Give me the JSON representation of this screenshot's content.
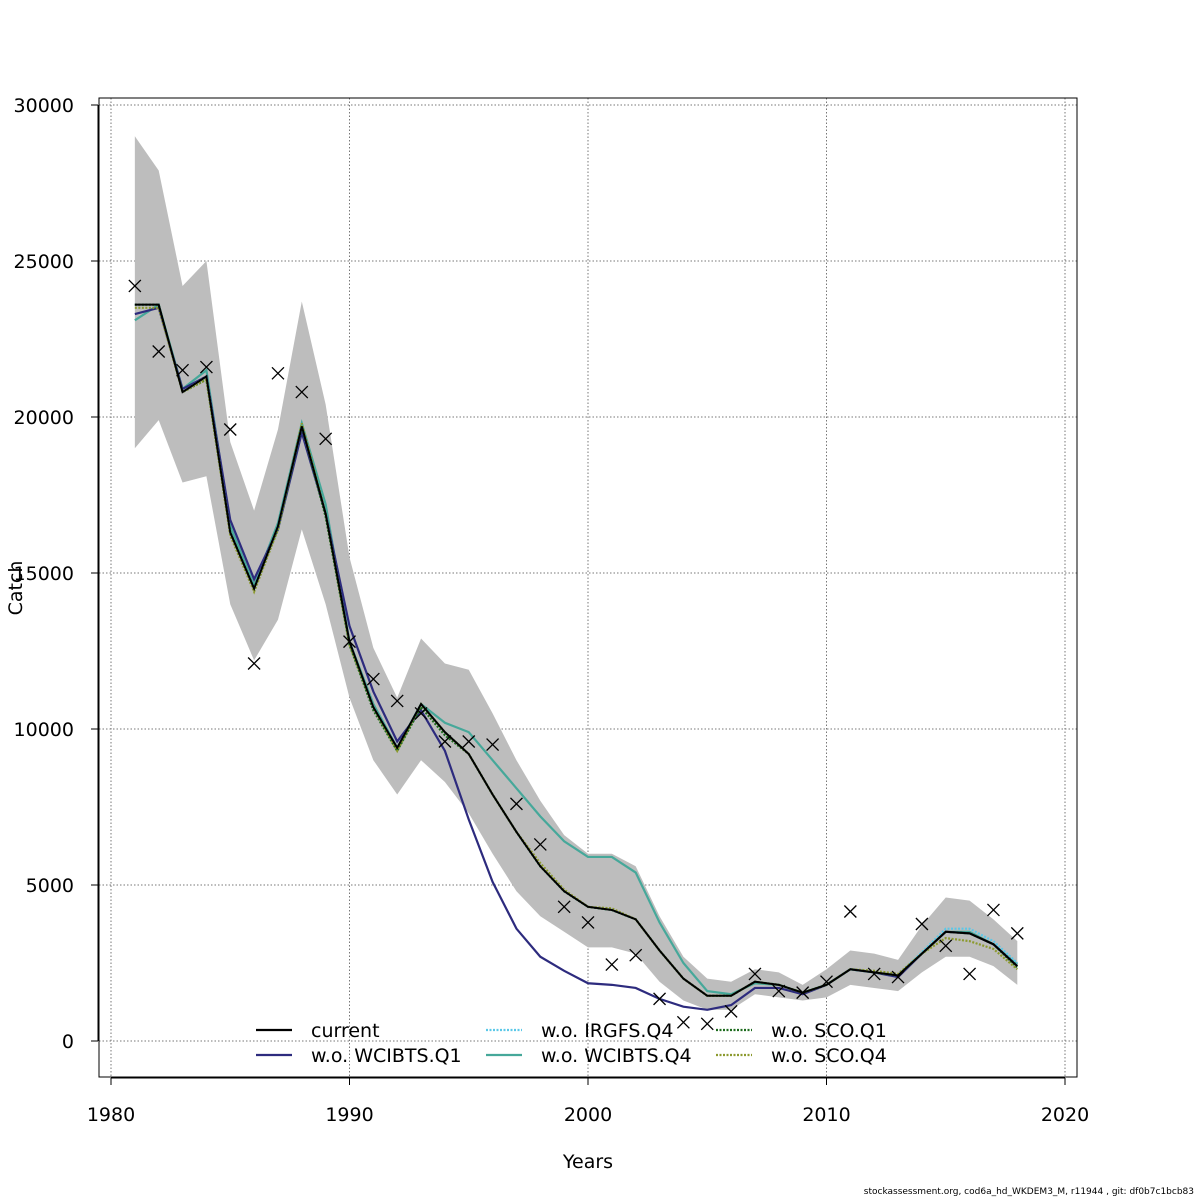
{
  "chart_data": {
    "type": "line",
    "title": "",
    "xlabel": "Years",
    "ylabel": "Catch",
    "xlim": [
      1980,
      2020
    ],
    "ylim": [
      0,
      30000
    ],
    "x_ticks": [
      1980,
      1990,
      2000,
      2010,
      2020
    ],
    "y_ticks": [
      0,
      5000,
      10000,
      15000,
      20000,
      25000,
      30000
    ],
    "grid": true,
    "legend_position": "bottom",
    "years": [
      1981,
      1982,
      1983,
      1984,
      1985,
      1986,
      1987,
      1988,
      1989,
      1990,
      1991,
      1992,
      1993,
      1994,
      1995,
      1996,
      1997,
      1998,
      1999,
      2000,
      2001,
      2002,
      2003,
      2004,
      2005,
      2006,
      2007,
      2008,
      2009,
      2010,
      2011,
      2012,
      2013,
      2014,
      2015,
      2016,
      2017,
      2018
    ],
    "band": {
      "upper": [
        29000,
        27900,
        24200,
        25000,
        19200,
        17000,
        19600,
        23700,
        20400,
        15500,
        12600,
        11000,
        12900,
        12100,
        11900,
        10500,
        9000,
        7700,
        6600,
        6000,
        6000,
        5600,
        4000,
        2700,
        2000,
        1900,
        2300,
        2200,
        1800,
        2300,
        2900,
        2800,
        2600,
        3700,
        4600,
        4500,
        3900,
        3200
      ],
      "lower": [
        19000,
        19900,
        17900,
        18100,
        14000,
        12200,
        13500,
        16400,
        14000,
        11000,
        9000,
        7900,
        9000,
        8300,
        7300,
        6000,
        4800,
        4000,
        3500,
        3000,
        3000,
        2800,
        1900,
        1300,
        1000,
        1000,
        1500,
        1400,
        1300,
        1400,
        1800,
        1700,
        1600,
        2200,
        2700,
        2700,
        2400,
        1800
      ]
    },
    "observed_points": [
      24200,
      22100,
      21500,
      21600,
      19600,
      12100,
      21400,
      20800,
      19300,
      12800,
      11600,
      10900,
      10500,
      9600,
      9600,
      9500,
      7600,
      6300,
      4300,
      3800,
      2450,
      2750,
      1350,
      600,
      550,
      950,
      2150,
      1600,
      1550,
      1900,
      4150,
      2150,
      2050,
      3750,
      3050,
      2150,
      4200,
      3450
    ],
    "series": [
      {
        "name": "current",
        "color": "#000000",
        "dashed": false,
        "values": [
          23600,
          23600,
          20800,
          21300,
          16300,
          14500,
          16500,
          19700,
          16900,
          12800,
          10700,
          9400,
          10800,
          9900,
          9200,
          7900,
          6700,
          5600,
          4800,
          4300,
          4200,
          3900,
          2900,
          2000,
          1450,
          1450,
          1900,
          1800,
          1550,
          1800,
          2300,
          2200,
          2100,
          2800,
          3500,
          3450,
          3100,
          2400
        ]
      },
      {
        "name": "w.o. WCIBTS.Q1",
        "color": "#2d2b7e",
        "dashed": false,
        "values": [
          23300,
          23500,
          20900,
          21300,
          16700,
          14800,
          16400,
          19500,
          16900,
          13300,
          11200,
          9600,
          10600,
          9300,
          7100,
          5100,
          3600,
          2700,
          2250,
          1850,
          1800,
          1700,
          1350,
          1100,
          1000,
          1150,
          1700,
          1700,
          1500,
          1800,
          2300,
          2200,
          2050,
          2800,
          3500,
          3450,
          3100,
          2400
        ]
      },
      {
        "name": "w.o. IRGFS.Q4",
        "color": "#5bc8e8",
        "dashed": true,
        "values": [
          23600,
          23600,
          20800,
          21300,
          16300,
          14500,
          16500,
          19700,
          16900,
          12800,
          10700,
          9400,
          10800,
          9900,
          9200,
          7900,
          6700,
          5600,
          4800,
          4300,
          4200,
          3900,
          2900,
          2000,
          1450,
          1450,
          1900,
          1800,
          1550,
          1800,
          2300,
          2200,
          2100,
          2850,
          3600,
          3600,
          3200,
          2500
        ]
      },
      {
        "name": "w.o. WCIBTS.Q4",
        "color": "#46a89a",
        "dashed": false,
        "values": [
          23100,
          23600,
          20900,
          21500,
          16500,
          14600,
          16600,
          19800,
          17200,
          12800,
          10800,
          9400,
          10800,
          10200,
          9900,
          9000,
          8100,
          7200,
          6400,
          5900,
          5900,
          5400,
          3800,
          2500,
          1600,
          1500,
          1850,
          1800,
          1550,
          1800,
          2300,
          2200,
          2100,
          2800,
          3500,
          3500,
          3100,
          2450
        ]
      },
      {
        "name": "w.o. SCO.Q1",
        "color": "#1e6b1e",
        "dashed": true,
        "values": [
          23600,
          23600,
          20800,
          21200,
          16300,
          14500,
          16400,
          19700,
          16800,
          12700,
          10600,
          9300,
          10700,
          9800,
          9200,
          7900,
          6700,
          5600,
          4800,
          4300,
          4200,
          3900,
          2900,
          2000,
          1450,
          1450,
          1900,
          1800,
          1550,
          1800,
          2300,
          2200,
          2100,
          2800,
          3500,
          3450,
          3100,
          2350
        ]
      },
      {
        "name": "w.o. SCO.Q4",
        "color": "#8c9a2e",
        "dashed": true,
        "values": [
          23500,
          23500,
          20800,
          21200,
          16200,
          14400,
          16400,
          19800,
          16900,
          12700,
          10700,
          9300,
          10800,
          9900,
          9200,
          7900,
          6700,
          5700,
          4850,
          4300,
          4250,
          3900,
          2900,
          2000,
          1450,
          1450,
          1900,
          1800,
          1550,
          1800,
          2300,
          2250,
          2150,
          2800,
          3300,
          3200,
          2950,
          2300
        ]
      }
    ]
  },
  "footer": "stockassessment.org, cod6a_hd_WKDEM3_M, r11944 , git: df0b7c1bcb83"
}
